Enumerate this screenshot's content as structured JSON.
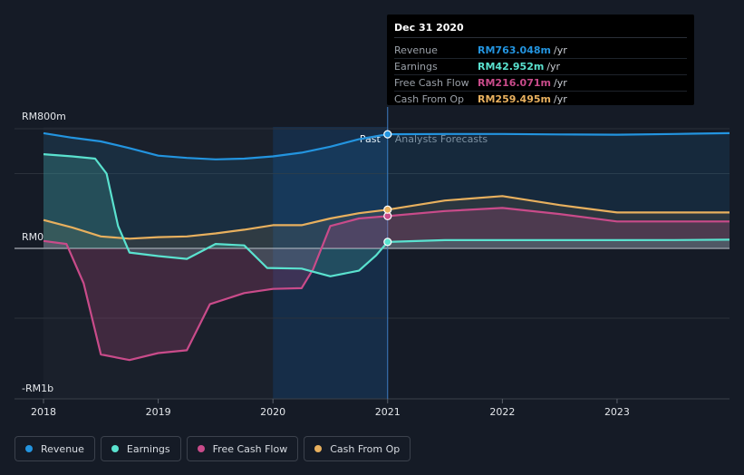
{
  "chart_data": {
    "type": "area",
    "x_tick_labels": [
      "2018",
      "2019",
      "2020",
      "2021",
      "2022",
      "2023"
    ],
    "x_range": [
      2018.0,
      2023.98
    ],
    "y_tick_labels": [
      "RM800m",
      "RM0",
      "-RM1b"
    ],
    "y_range_millions": [
      -1000,
      800
    ],
    "past_label": "Past",
    "forecast_label": "Analysts Forecasts",
    "divider_x": 2021.0,
    "series": [
      {
        "name": "Revenue",
        "color": "#2394df",
        "points": [
          [
            2018.0,
            770
          ],
          [
            2018.25,
            740
          ],
          [
            2018.5,
            715
          ],
          [
            2018.75,
            670
          ],
          [
            2019.0,
            620
          ],
          [
            2019.25,
            605
          ],
          [
            2019.5,
            595
          ],
          [
            2019.75,
            600
          ],
          [
            2020.0,
            615
          ],
          [
            2020.25,
            640
          ],
          [
            2020.5,
            680
          ],
          [
            2020.75,
            730
          ],
          [
            2021.0,
            763
          ],
          [
            2021.5,
            765
          ],
          [
            2022.0,
            765
          ],
          [
            2022.5,
            762
          ],
          [
            2023.0,
            760
          ],
          [
            2023.5,
            765
          ],
          [
            2023.98,
            770
          ]
        ]
      },
      {
        "name": "Earnings",
        "color": "#5ae2cf",
        "points": [
          [
            2018.0,
            630
          ],
          [
            2018.25,
            615
          ],
          [
            2018.45,
            600
          ],
          [
            2018.55,
            500
          ],
          [
            2018.65,
            150
          ],
          [
            2018.75,
            -30
          ],
          [
            2019.0,
            -55
          ],
          [
            2019.25,
            -75
          ],
          [
            2019.5,
            30
          ],
          [
            2019.75,
            20
          ],
          [
            2019.95,
            -140
          ],
          [
            2020.25,
            -145
          ],
          [
            2020.5,
            -200
          ],
          [
            2020.75,
            -160
          ],
          [
            2020.9,
            -50
          ],
          [
            2021.0,
            43
          ],
          [
            2021.5,
            55
          ],
          [
            2022.0,
            55
          ],
          [
            2022.5,
            55
          ],
          [
            2023.0,
            55
          ],
          [
            2023.5,
            56
          ],
          [
            2023.98,
            58
          ]
        ]
      },
      {
        "name": "Free Cash Flow",
        "color": "#c94b8a",
        "points": [
          [
            2018.0,
            50
          ],
          [
            2018.2,
            30
          ],
          [
            2018.35,
            -250
          ],
          [
            2018.5,
            -760
          ],
          [
            2018.75,
            -800
          ],
          [
            2019.0,
            -750
          ],
          [
            2019.25,
            -730
          ],
          [
            2019.45,
            -400
          ],
          [
            2019.75,
            -320
          ],
          [
            2020.0,
            -290
          ],
          [
            2020.25,
            -285
          ],
          [
            2020.35,
            -150
          ],
          [
            2020.5,
            150
          ],
          [
            2020.75,
            200
          ],
          [
            2021.0,
            216
          ],
          [
            2021.5,
            250
          ],
          [
            2022.0,
            270
          ],
          [
            2022.5,
            230
          ],
          [
            2023.0,
            180
          ],
          [
            2023.5,
            180
          ],
          [
            2023.98,
            180
          ]
        ]
      },
      {
        "name": "Cash From Op",
        "color": "#e8b05e",
        "points": [
          [
            2018.0,
            190
          ],
          [
            2018.25,
            140
          ],
          [
            2018.5,
            80
          ],
          [
            2018.75,
            65
          ],
          [
            2019.0,
            75
          ],
          [
            2019.25,
            80
          ],
          [
            2019.5,
            100
          ],
          [
            2019.75,
            125
          ],
          [
            2020.0,
            155
          ],
          [
            2020.25,
            155
          ],
          [
            2020.5,
            200
          ],
          [
            2020.75,
            235
          ],
          [
            2021.0,
            259
          ],
          [
            2021.5,
            320
          ],
          [
            2022.0,
            350
          ],
          [
            2022.5,
            290
          ],
          [
            2023.0,
            240
          ],
          [
            2023.5,
            240
          ],
          [
            2023.98,
            240
          ]
        ]
      }
    ],
    "tooltip": {
      "date": "Dec 31 2020",
      "rows": [
        {
          "label": "Revenue",
          "value": "RM763.048m",
          "unit": "/yr",
          "color": "#2394df"
        },
        {
          "label": "Earnings",
          "value": "RM42.952m",
          "unit": "/yr",
          "color": "#5ae2cf"
        },
        {
          "label": "Free Cash Flow",
          "value": "RM216.071m",
          "unit": "/yr",
          "color": "#c94b8a"
        },
        {
          "label": "Cash From Op",
          "value": "RM259.495m",
          "unit": "/yr",
          "color": "#e8b05e"
        }
      ]
    },
    "legend": [
      {
        "label": "Revenue",
        "color": "#2394df"
      },
      {
        "label": "Earnings",
        "color": "#5ae2cf"
      },
      {
        "label": "Free Cash Flow",
        "color": "#c94b8a"
      },
      {
        "label": "Cash From Op",
        "color": "#e8b05e"
      }
    ]
  }
}
